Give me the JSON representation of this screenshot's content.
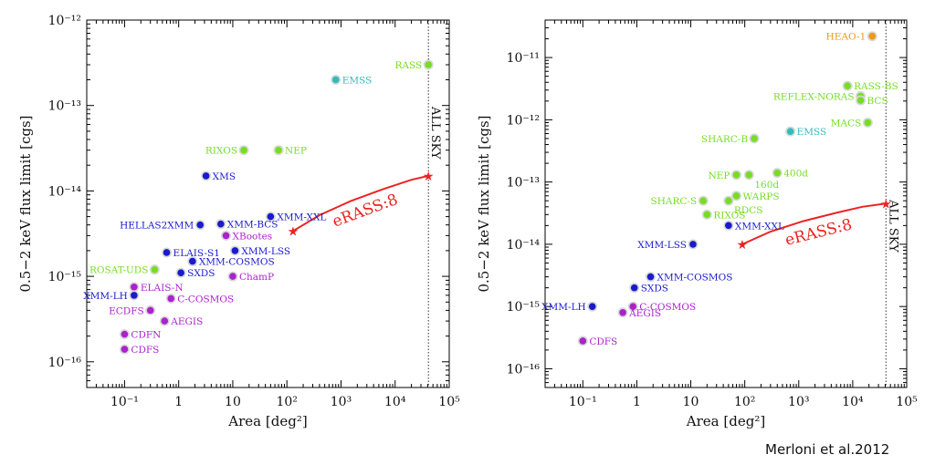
{
  "credit": "Merloni et al.2012",
  "colors": {
    "green": "#77dd22",
    "cyan": "#33bbbb",
    "blue": "#1a1acc",
    "magenta": "#aa22cc",
    "orange": "#ee9911",
    "red": "#ee2222"
  },
  "chart_data": [
    {
      "type": "scatter",
      "title": "",
      "xlabel": "Area [deg²]",
      "ylabel": "0.5−2 keV flux limit [cgs]",
      "xscale": "log",
      "yscale": "log",
      "xlim": [
        0.02,
        100000
      ],
      "ylim": [
        5e-17,
        1e-12
      ],
      "x_ticks": [
        "10⁻¹",
        "1",
        "10",
        "10²",
        "10³",
        "10⁴",
        "10⁵"
      ],
      "y_ticks": [
        "10⁻¹⁶",
        "10⁻¹⁵",
        "10⁻¹⁴",
        "10⁻¹³",
        "10⁻¹²"
      ],
      "all_sky": {
        "x": 41253,
        "label": "ALL SKY"
      },
      "erass": {
        "label": "eRASS:8",
        "x": [
          130,
          400,
          1500,
          6000,
          20000,
          41253
        ],
        "y": [
          3.4e-15,
          5.2e-15,
          7.6e-15,
          1.05e-14,
          1.35e-14,
          1.5e-14
        ]
      },
      "points": [
        {
          "name": "RASS",
          "x": 41253,
          "y": 3e-13,
          "color": "green",
          "label_side": "left"
        },
        {
          "name": "EMSS",
          "x": 800,
          "y": 2e-13,
          "color": "cyan",
          "label_side": "right"
        },
        {
          "name": "RIXOS",
          "x": 16,
          "y": 3e-14,
          "color": "green",
          "label_side": "left"
        },
        {
          "name": "NEP",
          "x": 70,
          "y": 3e-14,
          "color": "green",
          "label_side": "right"
        },
        {
          "name": "XMS",
          "x": 3.2,
          "y": 1.5e-14,
          "color": "blue",
          "label_side": "right"
        },
        {
          "name": "XMM-XXL",
          "x": 50,
          "y": 5e-15,
          "color": "blue",
          "label_side": "right"
        },
        {
          "name": "HELLAS2XMM",
          "x": 2.5,
          "y": 4e-15,
          "color": "blue",
          "label_side": "left"
        },
        {
          "name": "XMM-BCS",
          "x": 6,
          "y": 4.1e-15,
          "color": "blue",
          "label_side": "right"
        },
        {
          "name": "XBootes",
          "x": 7.5,
          "y": 3e-15,
          "color": "magenta",
          "label_side": "right"
        },
        {
          "name": "ELAIS-S1",
          "x": 0.6,
          "y": 1.9e-15,
          "color": "blue",
          "label_side": "right"
        },
        {
          "name": "XMM-LSS",
          "x": 11,
          "y": 2e-15,
          "color": "blue",
          "label_side": "right"
        },
        {
          "name": "XMM-COSMOS",
          "x": 1.8,
          "y": 1.5e-15,
          "color": "blue",
          "label_side": "right"
        },
        {
          "name": "ROSAT-UDS",
          "x": 0.36,
          "y": 1.2e-15,
          "color": "green",
          "label_side": "left"
        },
        {
          "name": "SXDS",
          "x": 1.1,
          "y": 1.1e-15,
          "color": "blue",
          "label_side": "right"
        },
        {
          "name": "ChamP",
          "x": 10,
          "y": 1e-15,
          "color": "magenta",
          "label_side": "right"
        },
        {
          "name": "ELAIS-N",
          "x": 0.15,
          "y": 7.5e-16,
          "color": "magenta",
          "label_side": "right"
        },
        {
          "name": "XMM-LH",
          "x": 0.15,
          "y": 6e-16,
          "color": "blue",
          "label_side": "left"
        },
        {
          "name": "C-COSMOS",
          "x": 0.72,
          "y": 5.5e-16,
          "color": "magenta",
          "label_side": "right"
        },
        {
          "name": "ECDFS",
          "x": 0.3,
          "y": 4e-16,
          "color": "magenta",
          "label_side": "left"
        },
        {
          "name": "AEGIS",
          "x": 0.55,
          "y": 3e-16,
          "color": "magenta",
          "label_side": "right"
        },
        {
          "name": "CDFN",
          "x": 0.1,
          "y": 2.1e-16,
          "color": "magenta",
          "label_side": "right"
        },
        {
          "name": "CDFS",
          "x": 0.1,
          "y": 1.4e-16,
          "color": "magenta",
          "label_side": "right"
        }
      ]
    },
    {
      "type": "scatter",
      "title": "",
      "xlabel": "Area [deg²]",
      "ylabel": "0.5−2 keV flux limit [cgs]",
      "xscale": "log",
      "yscale": "log",
      "xlim": [
        0.02,
        100000
      ],
      "ylim": [
        5e-17,
        4e-11
      ],
      "x_ticks": [
        "10⁻¹",
        "1",
        "10",
        "10²",
        "10³",
        "10⁴",
        "10⁵"
      ],
      "y_ticks": [
        "10⁻¹⁶",
        "10⁻¹⁵",
        "10⁻¹⁴",
        "10⁻¹³",
        "10⁻¹²",
        "10⁻¹¹"
      ],
      "all_sky": {
        "x": 41253,
        "label": "ALL SKY"
      },
      "erass": {
        "label": "eRASS:8",
        "x": [
          90,
          300,
          1200,
          5000,
          15000,
          41253
        ],
        "y": [
          1e-14,
          1.6e-14,
          2.35e-14,
          3.2e-14,
          4e-14,
          4.5e-14
        ]
      },
      "points": [
        {
          "name": "HEAO-1",
          "x": 23000,
          "y": 2.2e-11,
          "color": "orange",
          "label_side": "left"
        },
        {
          "name": "RASS-BS",
          "x": 8000,
          "y": 3.5e-12,
          "color": "green",
          "label_side": "right"
        },
        {
          "name": "REFLEX-NORAS",
          "x": 14000,
          "y": 2.4e-12,
          "color": "green",
          "label_side": "left"
        },
        {
          "name": "BCS",
          "x": 14000,
          "y": 2.05e-12,
          "color": "green",
          "label_side": "right"
        },
        {
          "name": "MACS",
          "x": 19000,
          "y": 9e-13,
          "color": "green",
          "label_side": "left"
        },
        {
          "name": "SHARC-B",
          "x": 150,
          "y": 5e-13,
          "color": "green",
          "label_side": "left"
        },
        {
          "name": "EMSS",
          "x": 700,
          "y": 6.5e-13,
          "color": "cyan",
          "label_side": "right"
        },
        {
          "name": "NEP",
          "x": 70,
          "y": 1.3e-13,
          "color": "green",
          "label_side": "left"
        },
        {
          "name": "160d",
          "x": 120,
          "y": 1.3e-13,
          "color": "green",
          "label_side": "below-right"
        },
        {
          "name": "400d",
          "x": 400,
          "y": 1.4e-13,
          "color": "green",
          "label_side": "right"
        },
        {
          "name": "SHARC-S",
          "x": 17,
          "y": 5e-14,
          "color": "green",
          "label_side": "left"
        },
        {
          "name": "WARPS",
          "x": 70,
          "y": 6e-14,
          "color": "green",
          "label_side": "right"
        },
        {
          "name": "RDCS",
          "x": 50,
          "y": 5e-14,
          "color": "green",
          "label_side": "below-right"
        },
        {
          "name": "RIXOS",
          "x": 20,
          "y": 3e-14,
          "color": "green",
          "label_side": "right"
        },
        {
          "name": "XMM-XXL",
          "x": 50,
          "y": 2e-14,
          "color": "blue",
          "label_side": "right"
        },
        {
          "name": "XMM-LSS",
          "x": 11,
          "y": 1e-14,
          "color": "blue",
          "label_side": "left"
        },
        {
          "name": "XMM-COSMOS",
          "x": 1.8,
          "y": 3e-15,
          "color": "blue",
          "label_side": "right"
        },
        {
          "name": "SXDS",
          "x": 0.9,
          "y": 2e-15,
          "color": "blue",
          "label_side": "right"
        },
        {
          "name": "XMM-LH",
          "x": 0.15,
          "y": 1e-15,
          "color": "blue",
          "label_side": "left"
        },
        {
          "name": "C-COSMOS",
          "x": 0.85,
          "y": 1e-15,
          "color": "magenta",
          "label_side": "right"
        },
        {
          "name": "AEGIS",
          "x": 0.55,
          "y": 8e-16,
          "color": "magenta",
          "label_side": "right"
        },
        {
          "name": "CDFS",
          "x": 0.1,
          "y": 2.8e-16,
          "color": "magenta",
          "label_side": "right"
        }
      ]
    }
  ]
}
